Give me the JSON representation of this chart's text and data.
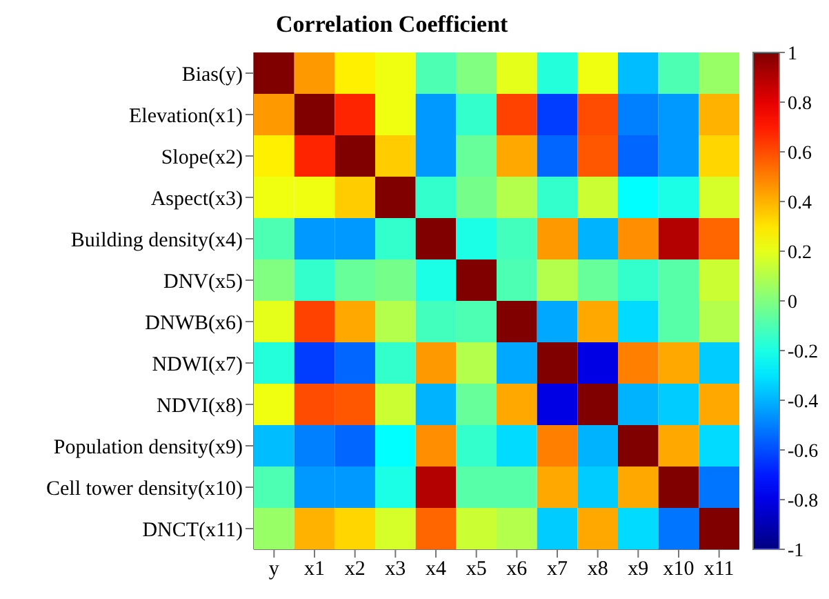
{
  "chart_data": {
    "type": "heatmap",
    "title": "Correlation Coefficient",
    "categories": [
      "y",
      "x1",
      "x2",
      "x3",
      "x4",
      "x5",
      "x6",
      "x7",
      "x8",
      "x9",
      "x10",
      "x11"
    ],
    "y_categories": [
      "Bias(y)",
      "Elevation(x1)",
      "Slope(x2)",
      "Aspect(x3)",
      "Building density(x4)",
      "DNV(x5)",
      "DNWB(x6)",
      "NDWI(x7)",
      "NDVI(x8)",
      "Population density(x9)",
      "Cell tower density(x10)",
      "DNCT(x11)"
    ],
    "cells": [
      [
        1,
        0.45,
        0.28,
        0.22,
        -0.1,
        0.0,
        0.2,
        -0.18,
        0.22,
        -0.38,
        -0.1,
        0.05
      ],
      [
        0.45,
        1,
        0.68,
        0.22,
        -0.45,
        -0.15,
        0.62,
        -0.63,
        0.6,
        -0.5,
        -0.45,
        0.4
      ],
      [
        0.28,
        0.68,
        1,
        0.35,
        -0.45,
        -0.05,
        0.42,
        -0.55,
        0.58,
        -0.55,
        -0.45,
        0.33
      ],
      [
        0.22,
        0.22,
        0.35,
        1,
        -0.15,
        -0.02,
        0.1,
        -0.15,
        0.15,
        -0.25,
        -0.2,
        0.17
      ],
      [
        -0.1,
        -0.45,
        -0.45,
        -0.15,
        1,
        -0.2,
        -0.12,
        0.45,
        -0.4,
        0.47,
        0.9,
        0.55
      ],
      [
        0.0,
        -0.15,
        -0.05,
        -0.02,
        -0.2,
        1,
        -0.1,
        0.1,
        -0.05,
        -0.15,
        -0.08,
        0.15
      ],
      [
        0.2,
        0.62,
        0.42,
        0.1,
        -0.12,
        -0.1,
        1,
        -0.42,
        0.42,
        -0.32,
        -0.08,
        0.1
      ],
      [
        -0.18,
        -0.63,
        -0.55,
        -0.15,
        0.45,
        0.1,
        -0.42,
        1,
        -0.8,
        0.5,
        0.42,
        -0.35
      ],
      [
        0.22,
        0.6,
        0.58,
        0.15,
        -0.4,
        -0.05,
        0.42,
        -0.8,
        1,
        -0.4,
        -0.35,
        0.42
      ],
      [
        -0.38,
        -0.5,
        -0.55,
        -0.25,
        0.47,
        -0.15,
        -0.32,
        0.5,
        -0.4,
        1,
        0.42,
        -0.32
      ],
      [
        -0.1,
        -0.45,
        -0.45,
        -0.2,
        0.9,
        -0.08,
        -0.08,
        0.42,
        -0.35,
        0.42,
        1,
        -0.52
      ],
      [
        0.05,
        0.4,
        0.33,
        0.17,
        0.55,
        0.15,
        0.1,
        -0.35,
        0.42,
        -0.32,
        -0.52,
        1
      ]
    ],
    "clim": [
      -1,
      1
    ],
    "cticks": [
      -1,
      -0.8,
      -0.6,
      -0.4,
      -0.2,
      0,
      0.2,
      0.4,
      0.6,
      0.8,
      1
    ]
  }
}
